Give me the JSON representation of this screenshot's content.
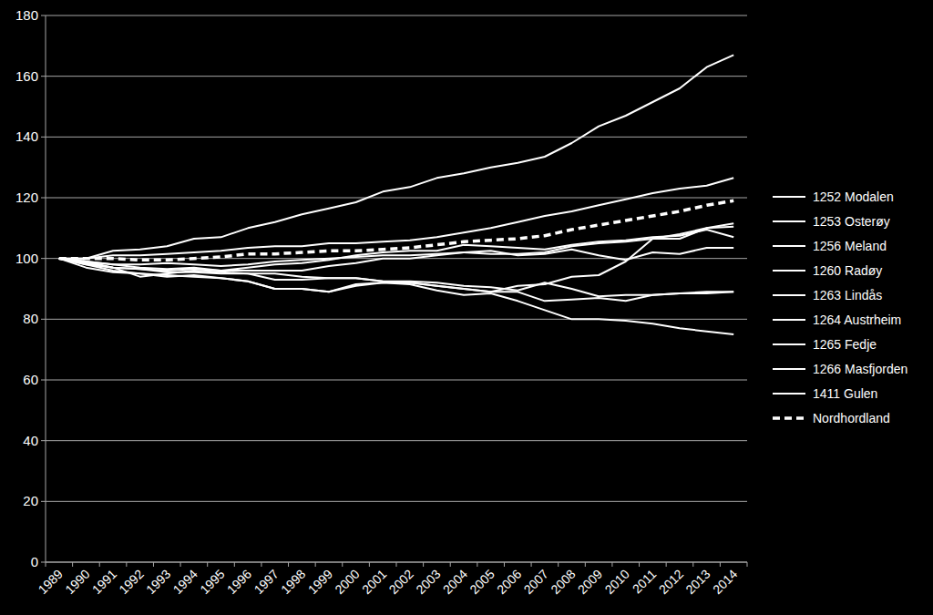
{
  "chart_data": {
    "type": "line",
    "categories": [
      "1989",
      "1990",
      "1991",
      "1992",
      "1993",
      "1994",
      "1995",
      "1996",
      "1997",
      "1998",
      "1999",
      "2000",
      "2001",
      "2002",
      "2003",
      "2004",
      "2005",
      "2006",
      "2007",
      "2008",
      "2009",
      "2010",
      "2011",
      "2012",
      "2013",
      "2014"
    ],
    "ylim": [
      0,
      180
    ],
    "yticks": [
      0,
      20,
      40,
      60,
      80,
      100,
      120,
      140,
      160,
      180
    ],
    "grid": true,
    "legend": "right",
    "series": [
      {
        "name": "1252 Modalen",
        "color": "#ffffff",
        "line_style": "solid",
        "values": [
          100,
          99,
          97,
          94,
          95,
          96,
          95.5,
          95,
          93,
          93,
          93.5,
          93.5,
          92.5,
          92,
          91,
          90,
          89,
          91,
          91.5,
          94,
          94.5,
          99,
          106.5,
          106.5,
          110,
          110.5
        ]
      },
      {
        "name": "1253 Osterøy",
        "color": "#ffffff",
        "line_style": "solid",
        "values": [
          100,
          99,
          98,
          98,
          98.5,
          98,
          97.5,
          98,
          99,
          99.5,
          100,
          100.5,
          101,
          101,
          101.5,
          102,
          101.5,
          101.5,
          102,
          104,
          105,
          105.5,
          106.5,
          108,
          110,
          111.5
        ]
      },
      {
        "name": "1256 Meland",
        "color": "#ffffff",
        "line_style": "solid",
        "values": [
          100,
          100,
          102.5,
          103,
          104,
          106.5,
          107,
          110,
          112,
          114.5,
          116.5,
          118.5,
          122,
          123.5,
          126.5,
          128,
          130,
          131.5,
          133.5,
          138,
          143.5,
          147,
          151.5,
          156,
          163,
          167
        ]
      },
      {
        "name": "1260 Radøy",
        "color": "#ffffff",
        "line_style": "solid",
        "values": [
          100,
          98,
          97,
          96.5,
          96,
          96.5,
          96,
          96,
          96,
          96,
          97.5,
          98.5,
          100,
          100,
          101,
          102,
          102.5,
          101,
          101.5,
          103,
          101,
          99.5,
          102,
          101.5,
          103.5,
          103.5
        ]
      },
      {
        "name": "1263 Lindås",
        "color": "#ffffff",
        "line_style": "solid",
        "values": [
          100,
          100,
          101,
          101,
          101.5,
          102,
          102.5,
          103.5,
          104,
          104,
          105,
          105,
          105.5,
          106,
          107,
          108.5,
          110,
          112,
          114,
          115.5,
          117.5,
          119.5,
          121.5,
          123,
          124,
          126.5
        ]
      },
      {
        "name": "1264 Austrheim",
        "color": "#ffffff",
        "line_style": "solid",
        "values": [
          100,
          99,
          98,
          97,
          96.5,
          97,
          96,
          97,
          98,
          98.5,
          99.5,
          101,
          102,
          102.5,
          102.5,
          104.5,
          104,
          103.5,
          103,
          104.5,
          105.5,
          106,
          107,
          107.5,
          109.5,
          107
        ]
      },
      {
        "name": "1265 Fedje",
        "color": "#ffffff",
        "line_style": "solid",
        "values": [
          100,
          97,
          95.5,
          95,
          94,
          94.5,
          93.5,
          92.5,
          90,
          90,
          89,
          91,
          92,
          91.5,
          89.5,
          88,
          88.5,
          86,
          83,
          80,
          80,
          79.5,
          78.5,
          77,
          76,
          75
        ]
      },
      {
        "name": "1266 Masfjorden",
        "color": "#ffffff",
        "line_style": "solid",
        "values": [
          100,
          98,
          96,
          95,
          94.5,
          94,
          93.5,
          92.5,
          90,
          90,
          89,
          91.5,
          92,
          92,
          91,
          90,
          89,
          89,
          86,
          86.5,
          87,
          86,
          88,
          88.5,
          88.5,
          89
        ]
      },
      {
        "name": "1411 Gulen",
        "color": "#ffffff",
        "line_style": "solid",
        "values": [
          100,
          98.5,
          97,
          96.5,
          95.5,
          95.5,
          95,
          95,
          95,
          94,
          93.5,
          93.5,
          92.5,
          92.5,
          92,
          91,
          90.5,
          89.5,
          92,
          90,
          87.5,
          88,
          88,
          88.5,
          89,
          89
        ]
      },
      {
        "name": "Nordhordland",
        "color": "#ffffff",
        "line_style": "dashed",
        "values": [
          100,
          100,
          100,
          99.5,
          99.5,
          100,
          100.5,
          101.5,
          101.5,
          102,
          102.5,
          102.5,
          103,
          103.5,
          104.5,
          105.5,
          106,
          106.5,
          107.5,
          109.5,
          111,
          112.5,
          114,
          115.5,
          117.5,
          119
        ]
      }
    ]
  }
}
